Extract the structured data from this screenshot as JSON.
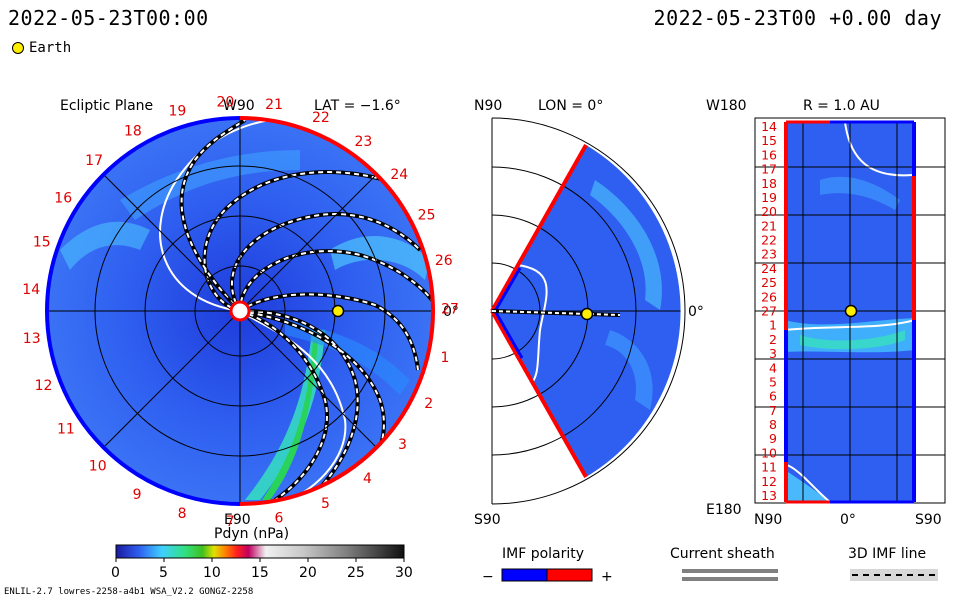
{
  "header": {
    "timestamp_left": "2022-05-23T00:00",
    "timestamp_right": "2022-05-23T00 +0.00 day",
    "earth_legend": "Earth"
  },
  "panels": {
    "ecliptic": {
      "title": "Ecliptic Plane",
      "lat_label": "LAT = −1.6°",
      "top_label": "W90",
      "bottom_label": "E90",
      "right_label": "0°",
      "carrington_numbers": [
        "20",
        "21",
        "22",
        "23",
        "24",
        "25",
        "26",
        "27",
        "1",
        "2",
        "3",
        "4",
        "5",
        "6",
        "7",
        "8",
        "9",
        "10",
        "11",
        "12",
        "13",
        "14",
        "15",
        "16",
        "17",
        "18",
        "19"
      ]
    },
    "meridional": {
      "top_left_label": "N90",
      "lon_label": "LON = 0°",
      "bottom_left_label": "S90",
      "right_label": "0°"
    },
    "radial": {
      "top_left_label": "W180",
      "r_label": "R = 1.0 AU",
      "bottom_left_label": "E180",
      "x_labels": [
        "N90",
        "0°",
        "S90"
      ],
      "y_labels": [
        "14",
        "15",
        "16",
        "17",
        "18",
        "19",
        "20",
        "21",
        "22",
        "23",
        "24",
        "25",
        "26",
        "27",
        "1",
        "2",
        "3",
        "4",
        "5",
        "6",
        "7",
        "8",
        "9",
        "10",
        "11",
        "12",
        "13"
      ]
    }
  },
  "legend": {
    "colorbar_title": "Pdyn (nPa)",
    "colorbar_ticks": [
      "0",
      "5",
      "10",
      "15",
      "20",
      "25",
      "30"
    ],
    "imf_polarity_title": "IMF polarity",
    "imf_minus": "−",
    "imf_plus": "+",
    "current_sheath_title": "Current sheath",
    "imf_line_title": "3D IMF line"
  },
  "footer": {
    "model_info": "ENLIL-2.7 lowres-2258-a4b1 WSA_V2.2 GONGZ-2258"
  },
  "colors": {
    "background_field": "#2f5ff0",
    "polarity_negative": "#0000ff",
    "polarity_positive": "#ff0000",
    "number_color": "#dd0000",
    "earth": "#ffee00"
  }
}
